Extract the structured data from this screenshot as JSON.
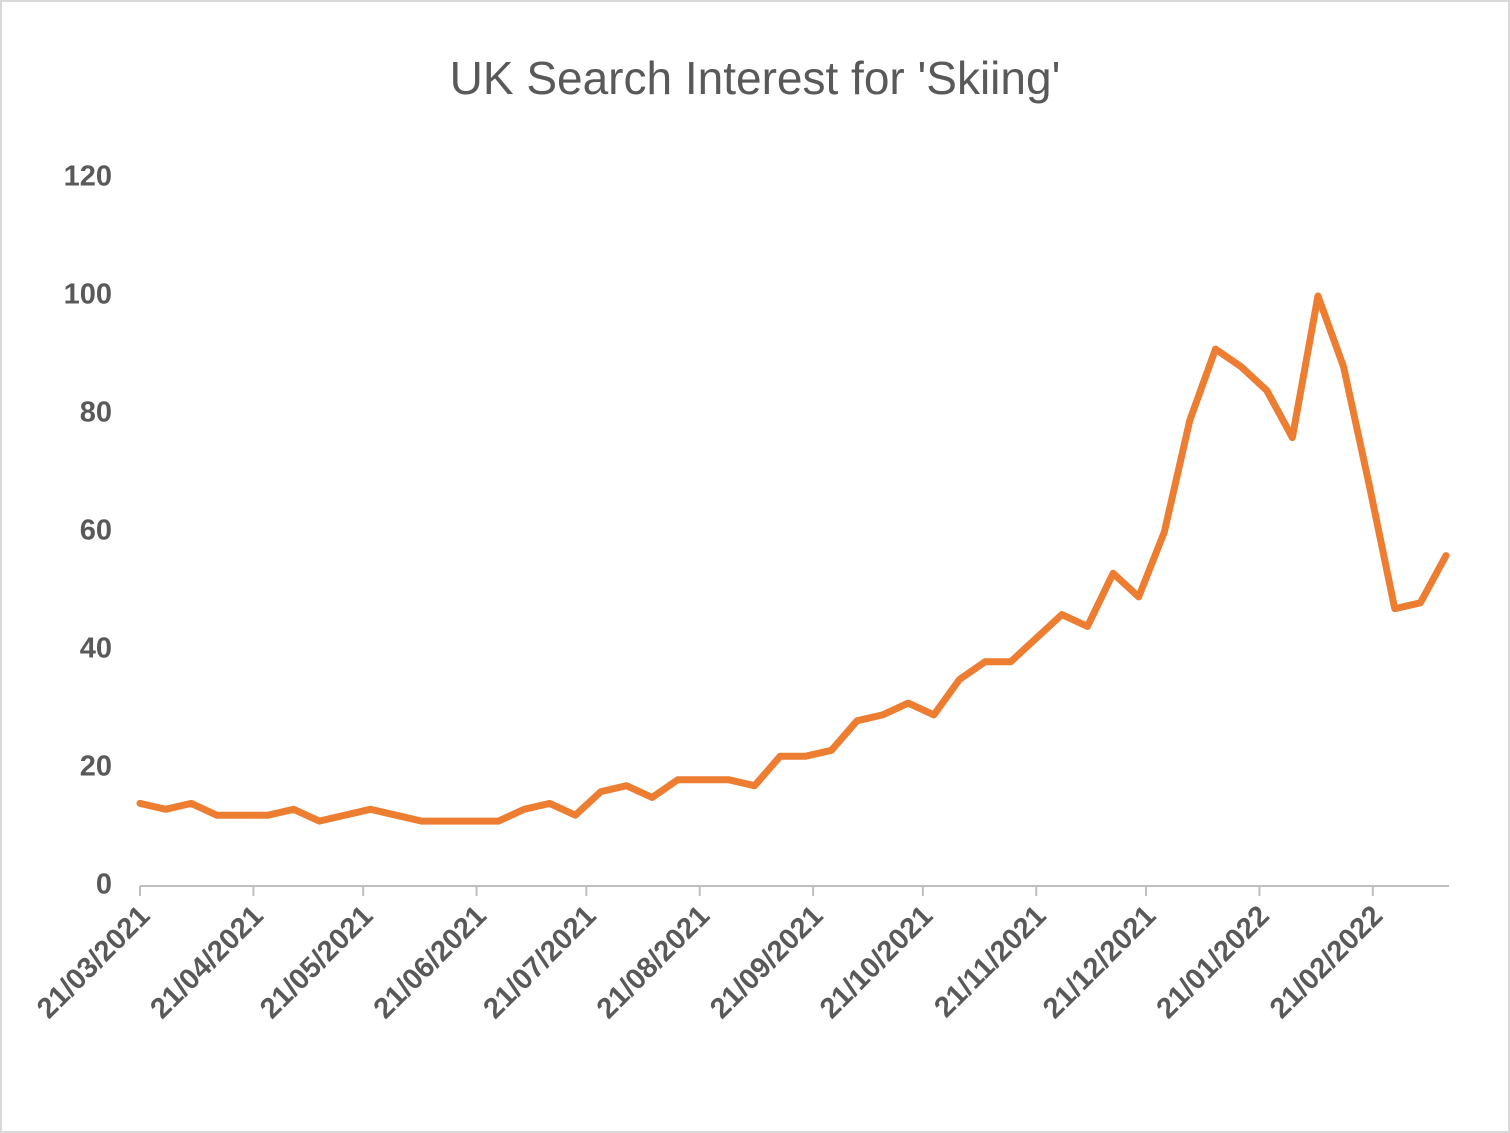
{
  "chart_data": {
    "type": "line",
    "title": "UK Search Interest for 'Skiing'",
    "x": [
      "2021-03-21",
      "2021-03-28",
      "2021-04-04",
      "2021-04-11",
      "2021-04-18",
      "2021-04-25",
      "2021-05-02",
      "2021-05-09",
      "2021-05-16",
      "2021-05-23",
      "2021-05-30",
      "2021-06-06",
      "2021-06-13",
      "2021-06-20",
      "2021-06-27",
      "2021-07-04",
      "2021-07-11",
      "2021-07-18",
      "2021-07-25",
      "2021-08-01",
      "2021-08-08",
      "2021-08-15",
      "2021-08-22",
      "2021-08-29",
      "2021-09-05",
      "2021-09-12",
      "2021-09-19",
      "2021-09-26",
      "2021-10-03",
      "2021-10-10",
      "2021-10-17",
      "2021-10-24",
      "2021-10-31",
      "2021-11-07",
      "2021-11-14",
      "2021-11-21",
      "2021-11-28",
      "2021-12-05",
      "2021-12-12",
      "2021-12-19",
      "2021-12-26",
      "2022-01-02",
      "2022-01-09",
      "2022-01-16",
      "2022-01-23",
      "2022-01-30",
      "2022-02-06",
      "2022-02-13",
      "2022-02-20",
      "2022-02-27",
      "2022-03-06",
      "2022-03-13"
    ],
    "series": [
      {
        "name": "Skiing",
        "color": "#ed7d31",
        "values": [
          14,
          13,
          14,
          12,
          12,
          12,
          13,
          11,
          12,
          13,
          12,
          11,
          11,
          11,
          11,
          13,
          14,
          12,
          16,
          17,
          15,
          18,
          18,
          18,
          17,
          22,
          22,
          23,
          28,
          29,
          31,
          29,
          35,
          38,
          38,
          42,
          46,
          44,
          53,
          49,
          60,
          79,
          91,
          88,
          84,
          76,
          100,
          88,
          68,
          47,
          48,
          56
        ]
      }
    ],
    "xlim": [
      "2021-03-21",
      "2022-03-13"
    ],
    "xticks": [
      {
        "value": "2021-03-21",
        "label": "21/03/2021"
      },
      {
        "value": "2021-04-21",
        "label": "21/04/2021"
      },
      {
        "value": "2021-05-21",
        "label": "21/05/2021"
      },
      {
        "value": "2021-06-21",
        "label": "21/06/2021"
      },
      {
        "value": "2021-07-21",
        "label": "21/07/2021"
      },
      {
        "value": "2021-08-21",
        "label": "21/08/2021"
      },
      {
        "value": "2021-09-21",
        "label": "21/09/2021"
      },
      {
        "value": "2021-10-21",
        "label": "21/10/2021"
      },
      {
        "value": "2021-11-21",
        "label": "21/11/2021"
      },
      {
        "value": "2021-12-21",
        "label": "21/12/2021"
      },
      {
        "value": "2022-01-21",
        "label": "21/01/2022"
      },
      {
        "value": "2022-02-21",
        "label": "21/02/2022"
      }
    ],
    "ylim": [
      0,
      120
    ],
    "yticks": [
      0,
      20,
      40,
      60,
      80,
      100,
      120
    ],
    "grid": false
  }
}
